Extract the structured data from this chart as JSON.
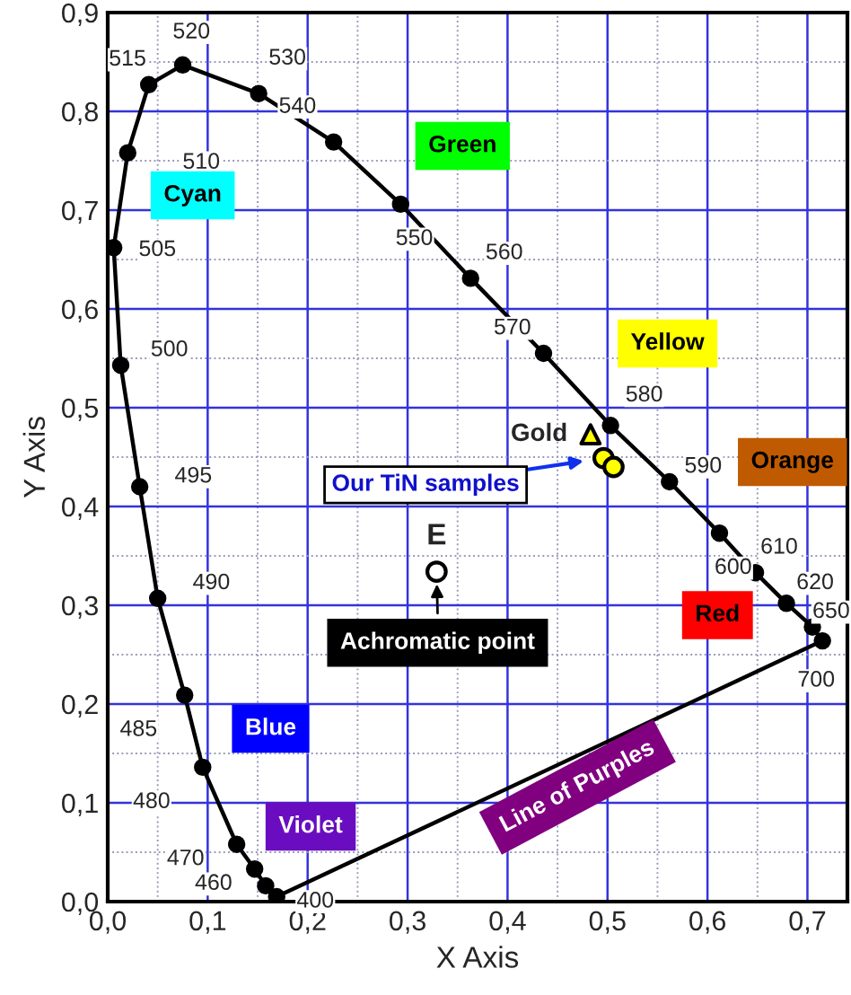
{
  "chart_data": {
    "type": "line",
    "xlabel": "X Axis",
    "ylabel": "Y Axis",
    "xlim": [
      0,
      0.74
    ],
    "ylim": [
      0,
      0.9
    ],
    "xticks": [
      {
        "value": 0,
        "label": "0,0"
      },
      {
        "value": 0.05,
        "label": null
      },
      {
        "value": 0.1,
        "label": "0,1"
      },
      {
        "value": 0.15,
        "label": null
      },
      {
        "value": 0.2,
        "label": "0,2"
      },
      {
        "value": 0.25,
        "label": null
      },
      {
        "value": 0.3,
        "label": "0,3"
      },
      {
        "value": 0.35,
        "label": null
      },
      {
        "value": 0.4,
        "label": "0,4"
      },
      {
        "value": 0.45,
        "label": null
      },
      {
        "value": 0.5,
        "label": "0,5"
      },
      {
        "value": 0.55,
        "label": null
      },
      {
        "value": 0.6,
        "label": "0,6"
      },
      {
        "value": 0.65,
        "label": null
      },
      {
        "value": 0.7,
        "label": "0,7"
      }
    ],
    "yticks": [
      {
        "value": 0,
        "label": "0,0"
      },
      {
        "value": 0.05,
        "label": null
      },
      {
        "value": 0.1,
        "label": "0,1"
      },
      {
        "value": 0.15,
        "label": null
      },
      {
        "value": 0.2,
        "label": "0,2"
      },
      {
        "value": 0.25,
        "label": null
      },
      {
        "value": 0.3,
        "label": "0,3"
      },
      {
        "value": 0.35,
        "label": null
      },
      {
        "value": 0.4,
        "label": "0,4"
      },
      {
        "value": 0.45,
        "label": null
      },
      {
        "value": 0.5,
        "label": "0,5"
      },
      {
        "value": 0.55,
        "label": null
      },
      {
        "value": 0.6,
        "label": "0,6"
      },
      {
        "value": 0.65,
        "label": null
      },
      {
        "value": 0.7,
        "label": "0,7"
      },
      {
        "value": 0.75,
        "label": null
      },
      {
        "value": 0.8,
        "label": "0,8"
      },
      {
        "value": 0.85,
        "label": null
      },
      {
        "value": 0.9,
        "label": "0,9"
      }
    ],
    "grid": true,
    "series": [
      {
        "color": "#000000",
        "marker": "circle",
        "x": [
          0.169,
          0.158,
          0.147,
          0.129,
          0.095,
          0.077,
          0.05,
          0.032,
          0.013,
          0.006,
          0.02,
          0.041,
          0.075,
          0.151,
          0.226,
          0.293,
          0.363,
          0.436,
          0.503,
          0.562,
          0.612,
          0.648,
          0.679,
          0.705,
          0.715
        ],
        "values": [
          0.005,
          0.016,
          0.033,
          0.058,
          0.136,
          0.209,
          0.307,
          0.42,
          0.543,
          0.662,
          0.758,
          0.827,
          0.847,
          0.818,
          0.769,
          0.706,
          0.631,
          0.555,
          0.482,
          0.425,
          0.373,
          0.333,
          0.302,
          0.278,
          0.264
        ]
      },
      {
        "color": "#000000",
        "x": [
          0.715,
          0.169
        ],
        "values": [
          0.264,
          0.005
        ]
      },
      {
        "type": "scatter",
        "color": "#ffff00",
        "marker": "triangle",
        "x": [
          0.483
        ],
        "values": [
          0.473
        ]
      },
      {
        "type": "scatter",
        "color": "#ffff00",
        "marker": "circle",
        "x": [
          0.496,
          0.506
        ],
        "values": [
          0.449,
          0.44
        ]
      },
      {
        "type": "scatter",
        "color": "#ffffff",
        "marker": "circle",
        "x": [
          0.329
        ],
        "values": [
          0.334
        ]
      }
    ],
    "annotations": [
      {
        "text": "400",
        "x": 0.169,
        "y": 0.005
      },
      {
        "text": "460",
        "x": 0.147,
        "y": 0.033
      },
      {
        "text": "470",
        "x": 0.129,
        "y": 0.058
      },
      {
        "text": "480",
        "x": 0.095,
        "y": 0.136
      },
      {
        "text": "485",
        "x": 0.077,
        "y": 0.209
      },
      {
        "text": "490",
        "x": 0.05,
        "y": 0.307
      },
      {
        "text": "495",
        "x": 0.032,
        "y": 0.42
      },
      {
        "text": "500",
        "x": 0.013,
        "y": 0.543
      },
      {
        "text": "505",
        "x": 0.006,
        "y": 0.662
      },
      {
        "text": "510",
        "x": 0.02,
        "y": 0.758
      },
      {
        "text": "515",
        "x": 0.041,
        "y": 0.827
      },
      {
        "text": "520",
        "x": 0.075,
        "y": 0.847
      },
      {
        "text": "530",
        "x": 0.151,
        "y": 0.818
      },
      {
        "text": "540",
        "x": 0.226,
        "y": 0.769
      },
      {
        "text": "550",
        "x": 0.293,
        "y": 0.706
      },
      {
        "text": "560",
        "x": 0.363,
        "y": 0.631
      },
      {
        "text": "570",
        "x": 0.436,
        "y": 0.555
      },
      {
        "text": "580",
        "x": 0.503,
        "y": 0.482
      },
      {
        "text": "590",
        "x": 0.562,
        "y": 0.425
      },
      {
        "text": "600",
        "x": 0.612,
        "y": 0.373
      },
      {
        "text": "610",
        "x": 0.648,
        "y": 0.333
      },
      {
        "text": "620",
        "x": 0.679,
        "y": 0.302
      },
      {
        "text": "650",
        "x": 0.705,
        "y": 0.278
      },
      {
        "text": "700",
        "x": 0.715,
        "y": 0.264
      },
      {
        "text": "Gold",
        "x": 0.483,
        "y": 0.473
      },
      {
        "text": "E",
        "x": 0.329,
        "y": 0.334
      },
      "Cyan",
      "Green",
      "Yellow",
      "Orange",
      "Red",
      "Achromatic point",
      "Blue",
      "Violet",
      "Line of Purples",
      "Our TiN samples"
    ]
  }
}
